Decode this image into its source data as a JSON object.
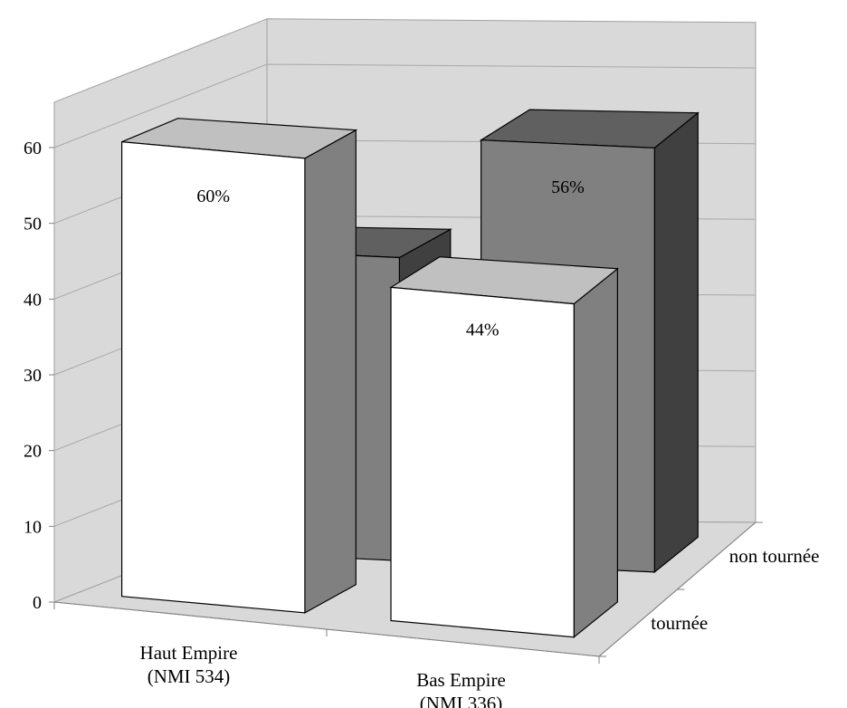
{
  "chart_data": {
    "type": "bar",
    "is_3d": true,
    "categories": [
      [
        "Haut Empire",
        "(NMI 534)"
      ],
      [
        "Bas Empire",
        "(NMI 336)"
      ]
    ],
    "series": [
      {
        "name": "tournée",
        "values": [
          60,
          44
        ],
        "labels": [
          "60%",
          "44%"
        ],
        "face_color": "#ffffff",
        "side_color": "#808080",
        "top_color": "#c0c0c0"
      },
      {
        "name": "non tournée",
        "values": [
          40,
          56
        ],
        "labels": [
          "40%",
          "56%"
        ],
        "face_color": "#808080",
        "side_color": "#404040",
        "top_color": "#606060"
      }
    ],
    "y_ticks": [
      "0",
      "10",
      "20",
      "30",
      "40",
      "50",
      "60"
    ],
    "ylim": [
      0,
      60
    ],
    "grid": true,
    "wall_color": "#d9d9d9",
    "floor_color": "#d9d9d9"
  }
}
